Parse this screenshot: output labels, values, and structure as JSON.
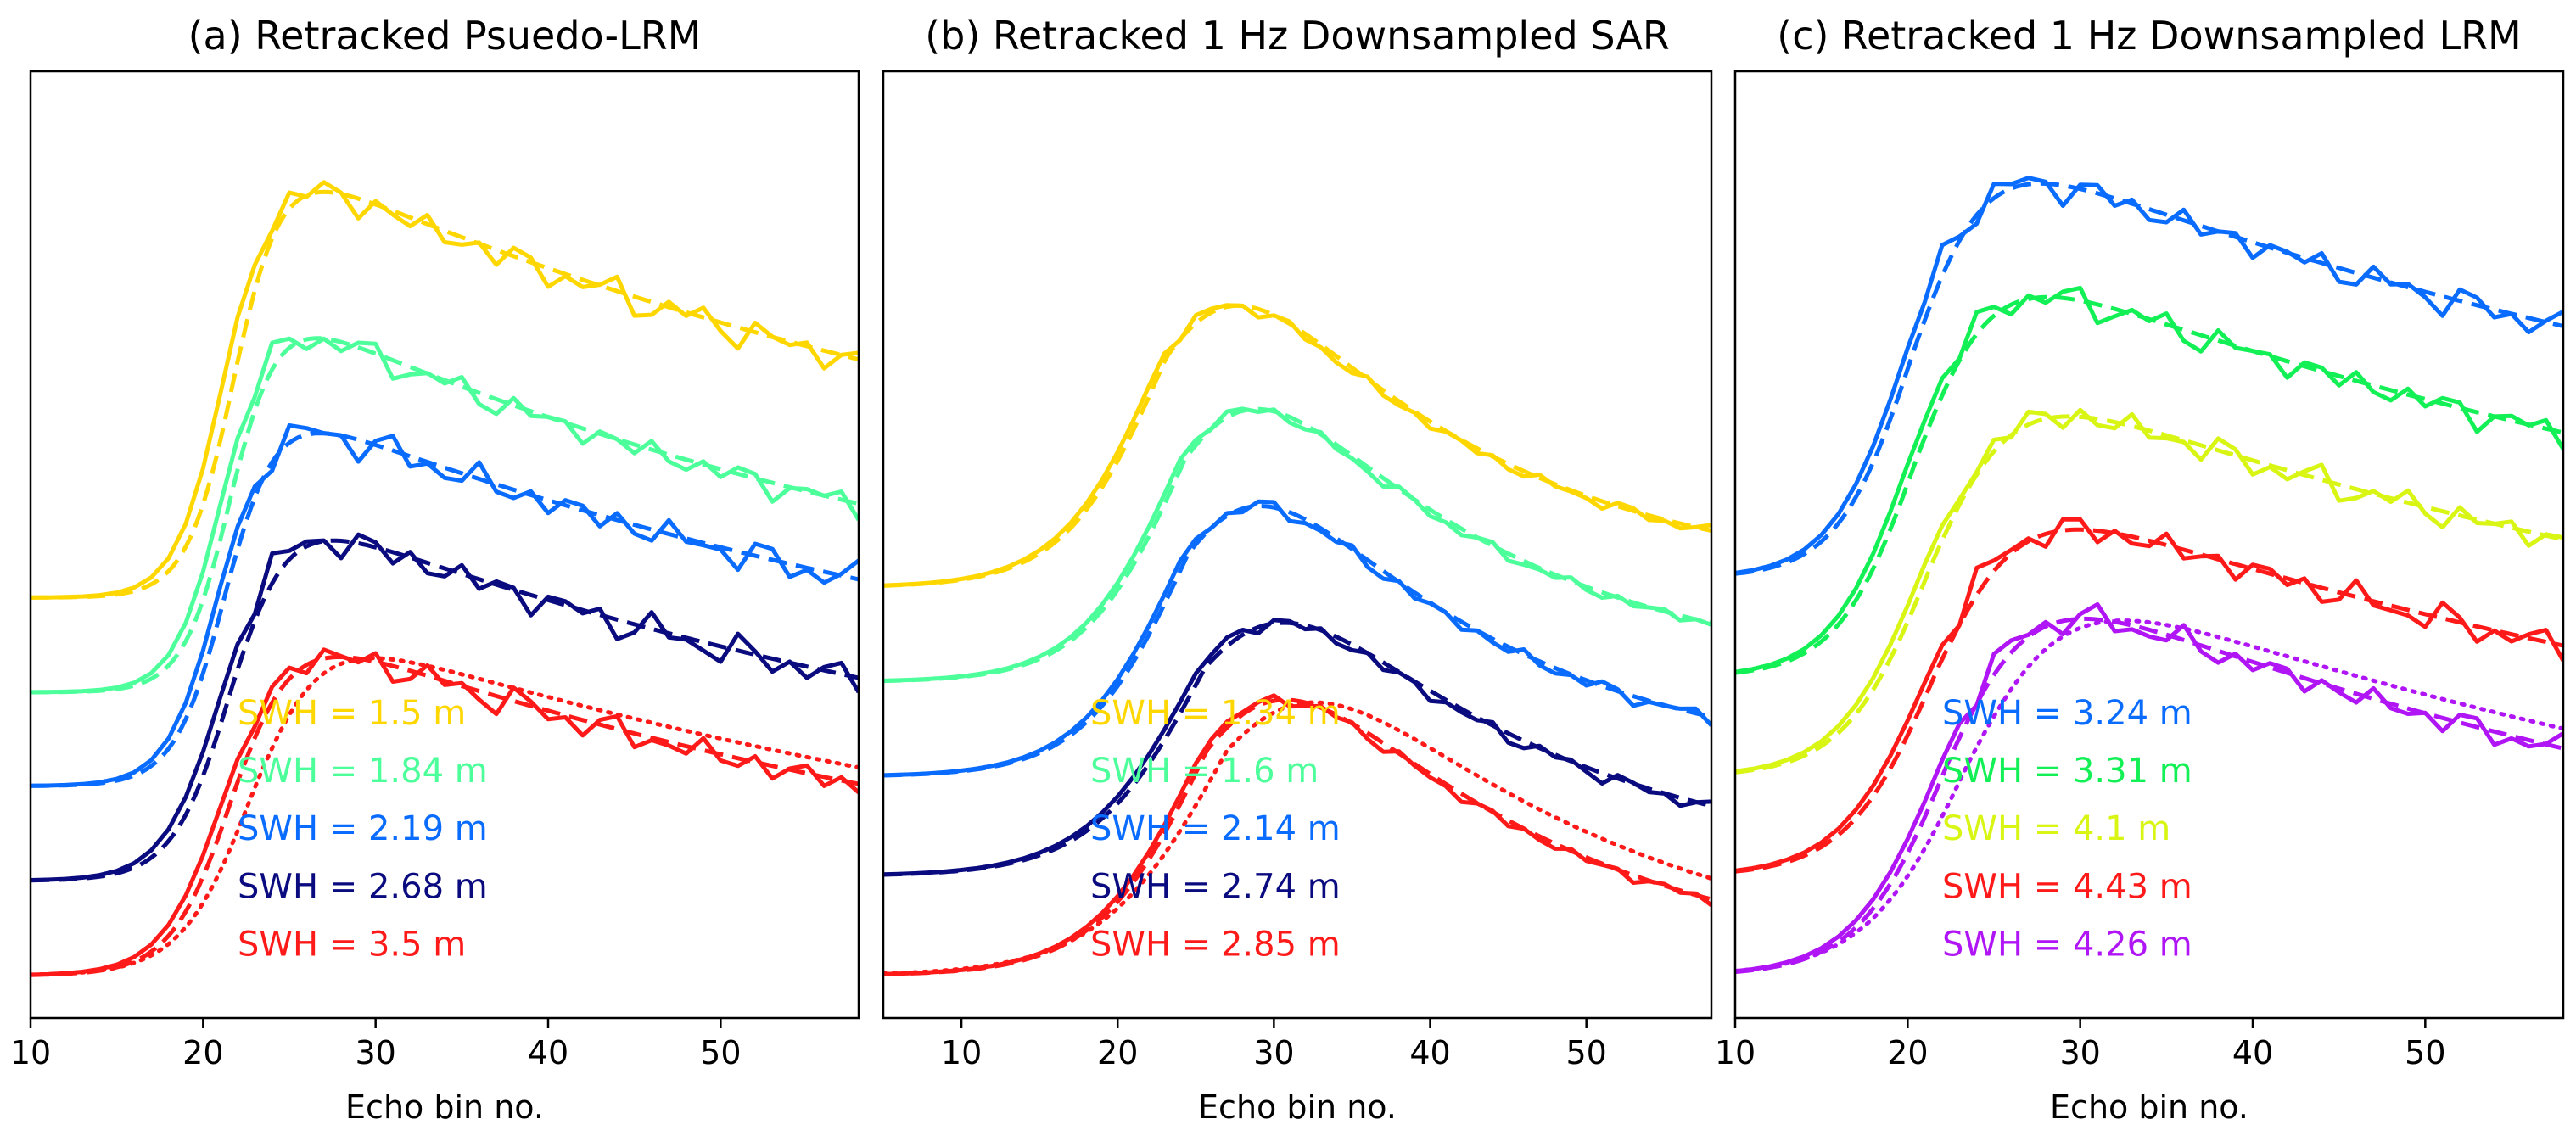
{
  "chart_data": [
    {
      "type": "line",
      "title": "(a) Retracked Psuedo-LRM",
      "xlabel": "Echo bin no.",
      "ylabel": "",
      "xlim": [
        10,
        58
      ],
      "ylim": [
        0,
        1
      ],
      "xticks": [
        10,
        20,
        30,
        40,
        50
      ],
      "series": [
        {
          "name": "SWH = 1.5 m",
          "color": "#FFD700",
          "swh": 1.5,
          "base": 0.444,
          "amp": 0.482,
          "t0": 21.3,
          "sigma": 1.4,
          "decay": 0.018,
          "noise": 0.012,
          "phase": 1.1,
          "dash_shift": 0.6,
          "dotted": false
        },
        {
          "name": "SWH = 1.84 m",
          "color": "#4CFF9A",
          "swh": 1.84,
          "base": 0.344,
          "amp": 0.427,
          "t0": 21.2,
          "sigma": 1.4,
          "decay": 0.021,
          "noise": 0.01,
          "phase": 2.3,
          "dash_shift": 0.5,
          "dotted": false
        },
        {
          "name": "SWH = 2.19 m",
          "color": "#0A6CFF",
          "swh": 2.19,
          "base": 0.245,
          "amp": 0.422,
          "t0": 21.0,
          "sigma": 1.5,
          "decay": 0.018,
          "noise": 0.012,
          "phase": 0.4,
          "dash_shift": 0.4,
          "dotted": false
        },
        {
          "name": "SWH = 2.68 m",
          "color": "#0B0B80",
          "swh": 2.68,
          "base": 0.145,
          "amp": 0.412,
          "t0": 21.2,
          "sigma": 1.7,
          "decay": 0.018,
          "noise": 0.012,
          "phase": 3.1,
          "dash_shift": 0.5,
          "dotted": false
        },
        {
          "name": "SWH = 3.5 m",
          "color": "#FF1A1A",
          "swh": 3.5,
          "base": 0.045,
          "amp": 0.388,
          "t0": 21.3,
          "sigma": 1.8,
          "decay": 0.018,
          "noise": 0.011,
          "phase": 1.7,
          "dash_shift": 0.5,
          "dotted": true
        }
      ]
    },
    {
      "type": "line",
      "title": "(b) Retracked 1 Hz Downsampled SAR",
      "xlabel": "Echo bin no.",
      "ylabel": "",
      "xlim": [
        5,
        58
      ],
      "ylim": [
        0,
        1
      ],
      "xticks": [
        10,
        20,
        30,
        40,
        50
      ],
      "series": [
        {
          "name": "SWH = 1.34 m",
          "color": "#FFD700",
          "swh": 1.34,
          "base": 0.455,
          "amp": 0.485,
          "t0": 22.8,
          "sigma": 3.2,
          "decay": 0.06,
          "noise": 0.004,
          "phase": 0.5,
          "dash_shift": 0.3,
          "dotted": false
        },
        {
          "name": "SWH = 1.6 m",
          "color": "#4CFF9A",
          "swh": 1.6,
          "base": 0.355,
          "amp": 0.47,
          "t0": 24.0,
          "sigma": 3.2,
          "decay": 0.06,
          "noise": 0.004,
          "phase": 1.5,
          "dash_shift": 0.3,
          "dotted": false
        },
        {
          "name": "SWH = 2.14 m",
          "color": "#0A6CFF",
          "swh": 2.14,
          "base": 0.255,
          "amp": 0.47,
          "t0": 24.2,
          "sigma": 3.3,
          "decay": 0.06,
          "noise": 0.005,
          "phase": 2.5,
          "dash_shift": 0.3,
          "dotted": false
        },
        {
          "name": "SWH = 2.74 m",
          "color": "#0B0B80",
          "swh": 2.74,
          "base": 0.15,
          "amp": 0.44,
          "t0": 25.2,
          "sigma": 3.6,
          "decay": 0.055,
          "noise": 0.005,
          "phase": 0.9,
          "dash_shift": 0.4,
          "dotted": false
        },
        {
          "name": "SWH = 2.85 m",
          "color": "#FF1A1A",
          "swh": 2.85,
          "base": 0.045,
          "amp": 0.475,
          "t0": 25.4,
          "sigma": 3.5,
          "decay": 0.055,
          "noise": 0.004,
          "phase": 2.0,
          "dash_shift": 0.3,
          "dotted": true
        }
      ]
    },
    {
      "type": "line",
      "title": "(c) Retracked 1 Hz Downsampled LRM",
      "xlabel": "Echo bin no.",
      "ylabel": "",
      "xlim": [
        10,
        58
      ],
      "ylim": [
        0,
        1
      ],
      "xticks": [
        10,
        20,
        30,
        40,
        50
      ],
      "series": [
        {
          "name": "SWH = 3.24 m",
          "color": "#0A6CFF",
          "swh": 3.24,
          "base": 0.465,
          "amp": 0.485,
          "t0": 20.0,
          "sigma": 2.2,
          "decay": 0.016,
          "noise": 0.011,
          "phase": 0.7,
          "dash_shift": 0.4,
          "dotted": false
        },
        {
          "name": "SWH = 3.31 m",
          "color": "#12F055",
          "swh": 3.31,
          "base": 0.36,
          "amp": 0.47,
          "t0": 20.2,
          "sigma": 2.3,
          "decay": 0.016,
          "noise": 0.011,
          "phase": 2.2,
          "dash_shift": 0.4,
          "dotted": false
        },
        {
          "name": "SWH = 4.1 m",
          "color": "#D8F514",
          "swh": 4.1,
          "base": 0.255,
          "amp": 0.45,
          "t0": 21.0,
          "sigma": 2.5,
          "decay": 0.016,
          "noise": 0.011,
          "phase": 1.3,
          "dash_shift": 0.4,
          "dotted": false
        },
        {
          "name": "SWH = 4.43 m",
          "color": "#FF1A1A",
          "swh": 4.43,
          "base": 0.15,
          "amp": 0.435,
          "t0": 21.3,
          "sigma": 2.6,
          "decay": 0.016,
          "noise": 0.011,
          "phase": 2.9,
          "dash_shift": 0.4,
          "dotted": false
        },
        {
          "name": "SWH = 4.26 m",
          "color": "#B015F5",
          "swh": 4.26,
          "base": 0.045,
          "amp": 0.455,
          "t0": 22.0,
          "sigma": 2.6,
          "decay": 0.018,
          "noise": 0.01,
          "phase": 0.2,
          "dash_shift": 0.4,
          "dotted": true
        }
      ]
    }
  ]
}
